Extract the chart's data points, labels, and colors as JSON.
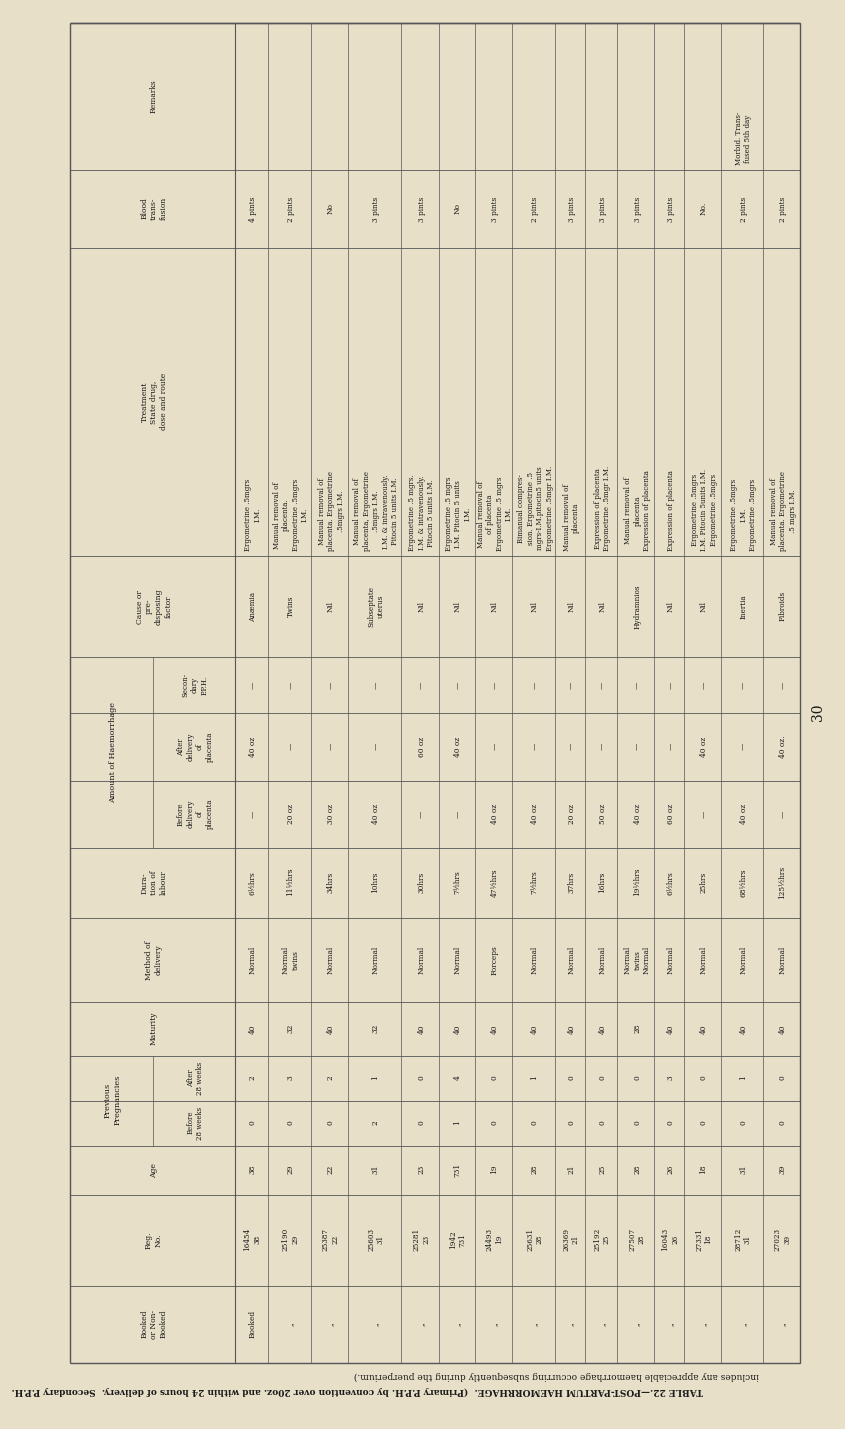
{
  "title_line1": "TABLE 22.—POST-PARTUM HAEMORRHAGE. (Primary P.P.H. by convention over 20oz. and within 24 hours of delivery. Secondary P.P.H.",
  "title_line2": "includes any appreciable haemorrhage occurring subsequently during the puerperium.)",
  "bg_color": "#e8dfc8",
  "text_color": "#1a1a1a",
  "rows": [
    [
      "Booked",
      "16454\n38",
      "38",
      "0",
      "2",
      "40",
      "Normal",
      "6½hrs",
      "—",
      "40 oz",
      "—",
      "Anæmia",
      "Ergometrine .5mgrs\nI.M.",
      "4 pints",
      ""
    ],
    [
      "„",
      "25190\n29",
      "29",
      "0",
      "3",
      "32",
      "Normal\ntwins",
      "11½hrs",
      "20 oz",
      "—",
      "—",
      "Twins",
      "Manual removal of\nplacenta.\nErgometrine .5mgrs\nI.M.",
      "2 pints",
      ""
    ],
    [
      "„",
      "25387\n22",
      "22",
      "0",
      "2",
      "40",
      "Normal",
      "34hrs",
      "30 oz",
      "—",
      "—",
      "Nil",
      "Manual removal of\nplacenta. Ergometrine\n.5mgrs I.M.",
      "No",
      ""
    ],
    [
      "„",
      "25603\n31",
      "31",
      "2",
      "1",
      "32",
      "Normal",
      "10hrs",
      "40 oz",
      "—",
      "—",
      "Subseptate\nuterus",
      "Manual removal of\nplacenta, Ergometrine\n.5mgrs I.M.\nI.M. & intravenously.\nPitocin 5 units I.M.",
      "3 pints",
      ""
    ],
    [
      "„",
      "25281\n23",
      "23",
      "0",
      "0",
      "40",
      "Normal",
      "30hrs",
      "—",
      "60 oz",
      "—",
      "Nil",
      "Ergometrine .5 mgrs.\nI.M. & intravenously.\nPitocin 5 units I.M.",
      "3 pints",
      ""
    ],
    [
      "„",
      "1942\n731",
      "731",
      "1",
      "4",
      "40",
      "Normal",
      "7½hrs",
      "—",
      "40 oz",
      "—",
      "Nil",
      "Ergometrine .5 mgrs\nI.M. Pitocin 5 units\nI.M.",
      "No",
      ""
    ],
    [
      "„",
      "24493\n19",
      "19",
      "0",
      "0",
      "40",
      "Forceps",
      "47½hrs",
      "40 oz",
      "—",
      "—",
      "Nil",
      "Manual removal of\nof placenta\nErgometrine .5 mgrs\nI.M.",
      "3 pints",
      ""
    ],
    [
      "„",
      "25631\n28",
      "28",
      "0",
      "1",
      "40",
      "Normal",
      "7½hrs",
      "40 oz",
      "—",
      "—",
      "Nil",
      "Bimanual compres-\nsion. Ergometrine .5\nmgrs-I.M.pitocin5 units\nErgometrine .5mgr I.M.",
      "2 pints",
      ""
    ],
    [
      "„",
      "26369\n21",
      "21",
      "0",
      "0",
      "40",
      "Normal",
      "37hrs",
      "20 oz",
      "—",
      "—",
      "Nil",
      "Manual removal of\nplacenta",
      "3 pints",
      ""
    ],
    [
      "„",
      "25192\n25",
      "25",
      "0",
      "0",
      "40",
      "Normal",
      "16hrs",
      "50 oz",
      "—",
      "—",
      "Nil",
      "Expression of placenta\nErgometrine .5mgr I.M.",
      "3 pints",
      ""
    ],
    [
      "„",
      "27507\n28",
      "28",
      "0",
      "0",
      "28",
      "Normal\ntwins\nNormal",
      "19½hrs",
      "40 oz",
      "—",
      "—",
      "Hydramnios",
      "Manual removal of\nplacenta\nExpression of placenta",
      "3 pints",
      ""
    ],
    [
      "„",
      "16043\n26",
      "26",
      "0",
      "3",
      "40",
      "Normal",
      "6½hrs",
      "60 oz",
      "—",
      "—",
      "Nil",
      "Expression of placenta",
      "3 pints",
      ""
    ],
    [
      "„",
      "27331\n18",
      "18",
      "0",
      "0",
      "40",
      "Normal",
      "25hrs",
      "—",
      "40 oz",
      "—",
      "Nil",
      "Ergometrine .5mgrs\nI.M. Pitocin 5units I.M.\nErgometrine .5mgrs",
      "No.",
      ""
    ],
    [
      "„",
      "28712\n31",
      "31",
      "0",
      "1",
      "40",
      "Normal",
      "68½hrs",
      "40 oz",
      "—",
      "—",
      "Inertia",
      "Ergometrine .5mgrs\nI.M.\nErgometrine .5mgrs",
      "2 pints",
      "Morbid. Trans-\nfused 5th day"
    ],
    [
      "„",
      "27023\n39",
      "39",
      "0",
      "0",
      "40",
      "Normal",
      "125½hrs",
      "—",
      "40 oz.",
      "—",
      "Fibroids",
      "Manual removal of\nplacenta. Ergometrine\n.5 mgrs I.M.",
      "2 pints",
      ""
    ]
  ]
}
